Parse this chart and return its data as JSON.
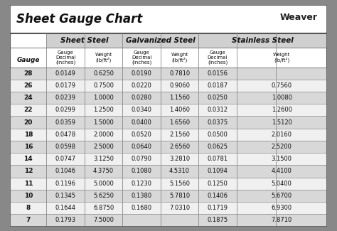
{
  "title": "Sheet Gauge Chart",
  "bg_outer": "#888888",
  "bg_inner": "#ffffff",
  "header_bg": "#d0d0d0",
  "row_bg_dark": "#d8d8d8",
  "row_bg_light": "#f0f0f0",
  "col_headers": [
    "Sheet Steel",
    "Galvanized Steel",
    "Stainless Steel"
  ],
  "sub_headers": [
    "Gauge\nDecimal\n(inches)",
    "Weight\n(lb/ft²)",
    "Gauge\nDecimal\n(inches)",
    "Weight\n(lb/ft²)",
    "Gauge\nDecimal\n(inches)",
    "Weight\n(lb/ft²)"
  ],
  "gauges": [
    28,
    26,
    24,
    22,
    20,
    18,
    16,
    14,
    12,
    11,
    10,
    8,
    7
  ],
  "sheet_steel": [
    [
      "0.0149",
      "0.6250"
    ],
    [
      "0.0179",
      "0.7500"
    ],
    [
      "0.0239",
      "1.0000"
    ],
    [
      "0.0299",
      "1.2500"
    ],
    [
      "0.0359",
      "1.5000"
    ],
    [
      "0.0478",
      "2.0000"
    ],
    [
      "0.0598",
      "2.5000"
    ],
    [
      "0.0747",
      "3.1250"
    ],
    [
      "0.1046",
      "4.3750"
    ],
    [
      "0.1196",
      "5.0000"
    ],
    [
      "0.1345",
      "5.6250"
    ],
    [
      "0.1644",
      "6.8750"
    ],
    [
      "0.1793",
      "7.5000"
    ]
  ],
  "galvanized_steel": [
    [
      "0.0190",
      "0.7810"
    ],
    [
      "0.0220",
      "0.9060"
    ],
    [
      "0.0280",
      "1.1560"
    ],
    [
      "0.0340",
      "1.4060"
    ],
    [
      "0.0400",
      "1.6560"
    ],
    [
      "0.0520",
      "2.1560"
    ],
    [
      "0.0640",
      "2.6560"
    ],
    [
      "0.0790",
      "3.2810"
    ],
    [
      "0.1080",
      "4.5310"
    ],
    [
      "0.1230",
      "5.1560"
    ],
    [
      "0.1380",
      "5.7810"
    ],
    [
      "0.1680",
      "7.0310"
    ],
    [
      "",
      ""
    ]
  ],
  "stainless_steel": [
    [
      "0.0156",
      ""
    ],
    [
      "0.0187",
      "0.7560"
    ],
    [
      "0.0250",
      "1.0080"
    ],
    [
      "0.0312",
      "1.2600"
    ],
    [
      "0.0375",
      "1.5120"
    ],
    [
      "0.0500",
      "2.0160"
    ],
    [
      "0.0625",
      "2.5200"
    ],
    [
      "0.0781",
      "3.1500"
    ],
    [
      "0.1094",
      "4.4100"
    ],
    [
      "0.1250",
      "5.0400"
    ],
    [
      "0.1406",
      "5.6700"
    ],
    [
      "0.1719",
      "6.9300"
    ],
    [
      "0.1875",
      "7.8710"
    ]
  ]
}
